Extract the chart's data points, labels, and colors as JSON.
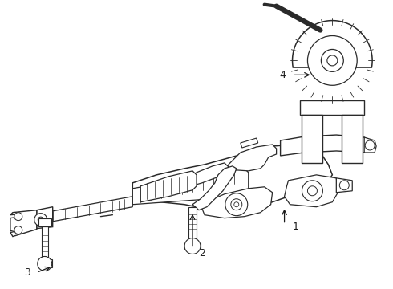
{
  "bg_color": "#ffffff",
  "line_color": "#2a2a2a",
  "lw_main": 1.0,
  "lw_thin": 0.6,
  "lw_thick": 1.4,
  "figw": 4.9,
  "figh": 3.6,
  "dpi": 100
}
